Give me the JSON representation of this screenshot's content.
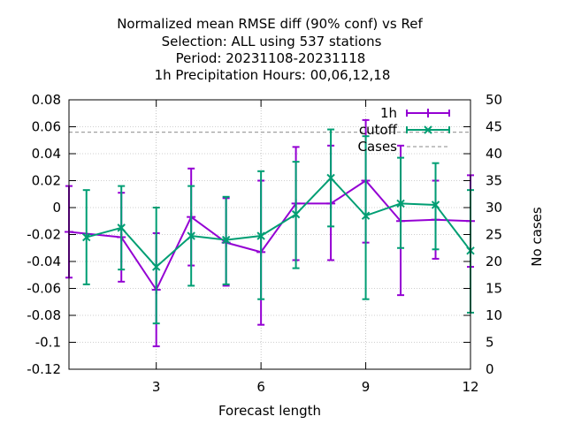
{
  "chart_data": {
    "type": "line",
    "title_lines": [
      "Normalized mean RMSE diff (90% conf) vs Ref",
      "Selection: ALL using   537 stations",
      "Period: 20231108-20231118",
      "1h Precipitation   Hours:  00,06,12,18"
    ],
    "xlabel": "Forecast length",
    "ylabel": "",
    "y2label": "No cases",
    "xlim": [
      0.5,
      12
    ],
    "ylim": [
      -0.12,
      0.08
    ],
    "y2lim": [
      0,
      50
    ],
    "xticks": [
      3,
      6,
      9,
      12
    ],
    "yticks": [
      -0.12,
      -0.1,
      -0.08,
      -0.06,
      -0.04,
      -0.02,
      0,
      0.02,
      0.04,
      0.06,
      0.08
    ],
    "ytick_labels": [
      "-0.12",
      "-0.1",
      "-0.08",
      "-0.06",
      "-0.04",
      "-0.02",
      "0",
      "0.02",
      "0.04",
      "0.06",
      "0.08"
    ],
    "y2ticks": [
      0,
      5,
      10,
      15,
      20,
      25,
      30,
      35,
      40,
      45,
      50
    ],
    "grid": true,
    "legend_position": "top-right",
    "series": [
      {
        "name": "1h",
        "color": "#9400d3",
        "marker": "plus",
        "x": [
          0.5,
          2,
          3,
          4,
          5,
          6,
          7,
          8,
          9,
          10,
          11,
          12
        ],
        "y": [
          -0.018,
          -0.022,
          -0.061,
          -0.007,
          -0.026,
          -0.033,
          0.003,
          0.003,
          0.02,
          -0.01,
          -0.009,
          -0.01
        ],
        "err_low": [
          -0.052,
          -0.055,
          -0.103,
          -0.043,
          -0.058,
          -0.087,
          -0.039,
          -0.039,
          -0.026,
          -0.065,
          -0.038,
          -0.044
        ],
        "err_high": [
          0.016,
          0.011,
          -0.019,
          0.029,
          0.007,
          0.02,
          0.045,
          0.046,
          0.065,
          0.046,
          0.02,
          0.024
        ]
      },
      {
        "name": "cutoff",
        "color": "#009e73",
        "marker": "cross",
        "x": [
          1,
          2,
          3,
          4,
          5,
          6,
          7,
          8,
          9,
          10,
          11,
          12
        ],
        "y": [
          -0.022,
          -0.015,
          -0.044,
          -0.021,
          -0.024,
          -0.021,
          -0.005,
          0.022,
          -0.006,
          0.003,
          0.002,
          -0.032
        ],
        "err_low": [
          -0.057,
          -0.046,
          -0.086,
          -0.058,
          -0.057,
          -0.068,
          -0.045,
          -0.014,
          -0.068,
          -0.03,
          -0.031,
          -0.078
        ],
        "err_high": [
          0.013,
          0.016,
          0.0,
          0.016,
          0.008,
          0.027,
          0.034,
          0.058,
          0.053,
          0.037,
          0.033,
          0.013
        ]
      },
      {
        "name": "Cases",
        "color": "#a0a0a0",
        "axis": "y2",
        "style": "dashed",
        "x": [
          0.5,
          12
        ],
        "y": [
          44,
          44
        ]
      }
    ]
  }
}
